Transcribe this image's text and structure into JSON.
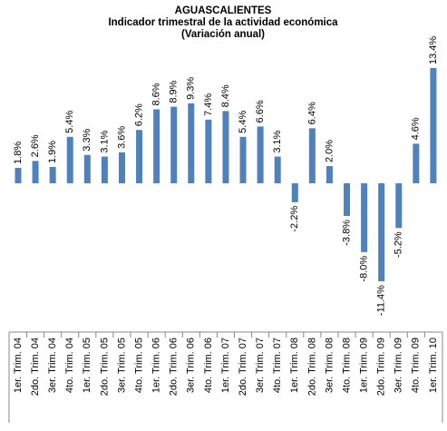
{
  "chart_data": {
    "type": "bar",
    "title": "AGUASCALIENTES",
    "subtitle": "Indicador trimestral de la actividad económica",
    "subtitle2": "(Variación anual)",
    "color": "#4f81bd",
    "categories": [
      "1er. Trim. 04",
      "2do. Trim. 04",
      "3er. Trim. 04",
      "4to. Trim. 04",
      "1er. Trim. 05",
      "2do. Trim. 05",
      "3er. Trim. 05",
      "4to. Trim. 05",
      "1er. Trim. 06",
      "2do. Trim. 06",
      "3er. Trim. 06",
      "4to. Trim. 06",
      "1er. Trim. 07",
      "2do. Trim. 07",
      "3er. Trim. 07",
      "4to. Trim. 07",
      "1er. Trim. 08",
      "2do. Trim. 08",
      "3er. Trim. 08",
      "4to. Trim. 08",
      "1er. Trim. 09",
      "2do. Trim. 09",
      "3er. Trim. 09",
      "4to. Trim. 09",
      "1er. Trim. 10"
    ],
    "values": [
      1.8,
      2.6,
      1.9,
      5.4,
      3.3,
      3.1,
      3.6,
      6.2,
      8.6,
      8.9,
      9.3,
      7.4,
      8.4,
      5.4,
      6.6,
      3.1,
      -2.2,
      6.4,
      2.0,
      -3.8,
      -8.0,
      -11.4,
      -5.2,
      4.6,
      13.4
    ],
    "value_labels": [
      "1.8%",
      "2.6%",
      "1.9%",
      "5.4%",
      "3.3%",
      "3.1%",
      "3.6%",
      "6.2%",
      "8.6%",
      "8.9%",
      "9.3%",
      "7.4%",
      "8.4%",
      "5.4%",
      "6.6%",
      "3.1%",
      "-2.2%",
      "6.4%",
      "2.0%",
      "-3.8%",
      "-8.0%",
      "-11.4%",
      "-5.2%",
      "4.6%",
      "13.4%"
    ]
  }
}
